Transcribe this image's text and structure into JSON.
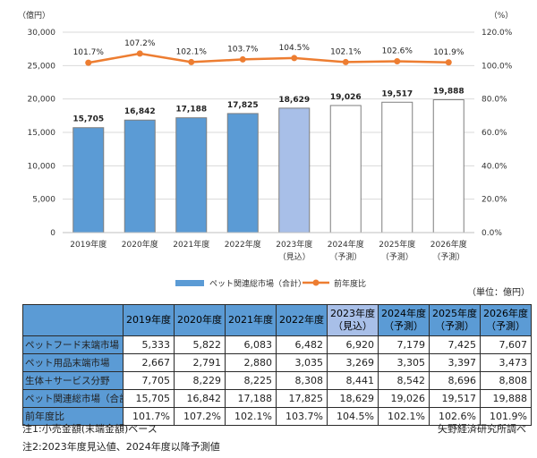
{
  "chart_data": {
    "type": "bar+line",
    "left_axis": {
      "unit": "（億円）",
      "ticks": [
        "30,000",
        "25,000",
        "20,000",
        "15,000",
        "10,000",
        "5,000",
        "0"
      ],
      "ylim": [
        0,
        30000
      ]
    },
    "right_axis": {
      "unit": "（%）",
      "ticks": [
        "120.0%",
        "100.0%",
        "80.0%",
        "60.0%",
        "40.0%",
        "20.0%",
        "0.0%"
      ],
      "ylim": [
        0,
        120
      ]
    },
    "categories": [
      [
        "2019年度"
      ],
      [
        "2020年度"
      ],
      [
        "2021年度"
      ],
      [
        "2022年度"
      ],
      [
        "2023年度",
        "（見込）"
      ],
      [
        "2024年度",
        "（予測）"
      ],
      [
        "2025年度",
        "（予測）"
      ],
      [
        "2026年度",
        "（予測）"
      ]
    ],
    "series": [
      {
        "name": "ペット関連総市場（合計）",
        "type": "bar",
        "values": [
          15705,
          16842,
          17188,
          17825,
          18629,
          19026,
          19517,
          19888
        ],
        "labels": [
          "15,705",
          "16,842",
          "17,188",
          "17,825",
          "18,629",
          "19,026",
          "19,517",
          "19,888"
        ]
      },
      {
        "name": "前年度比",
        "type": "line",
        "values": [
          101.7,
          107.2,
          102.1,
          103.7,
          104.5,
          102.1,
          102.6,
          101.9
        ],
        "labels": [
          "101.7%",
          "107.2%",
          "102.1%",
          "103.7%",
          "104.5%",
          "102.1%",
          "102.6%",
          "101.9%"
        ]
      }
    ],
    "grid": true,
    "legend_position": "bottom"
  },
  "colors": {
    "actual": "#5b9bd5",
    "estimate": "#a8bfe8",
    "forecast": "#ffffff",
    "line": "#ed7d31",
    "grid": "#d9d9d9"
  },
  "unit_note": "（単位：億円）",
  "table": {
    "headers": [
      {
        "line1": "2019年度",
        "line2": ""
      },
      {
        "line1": "2020年度",
        "line2": ""
      },
      {
        "line1": "2021年度",
        "line2": ""
      },
      {
        "line1": "2022年度",
        "line2": ""
      },
      {
        "line1": "2023年度",
        "line2": "（見込）"
      },
      {
        "line1": "2024年度",
        "line2": "（予測）"
      },
      {
        "line1": "2025年度",
        "line2": "（予測）"
      },
      {
        "line1": "2026年度",
        "line2": "（予測）"
      }
    ],
    "rows": [
      {
        "label": "ペットフード末端市場",
        "cells": [
          "5,333",
          "5,822",
          "6,083",
          "6,482",
          "6,920",
          "7,179",
          "7,425",
          "7,607"
        ]
      },
      {
        "label": "ペット用品末端市場",
        "cells": [
          "2,667",
          "2,791",
          "2,880",
          "3,035",
          "3,269",
          "3,305",
          "3,397",
          "3,473"
        ]
      },
      {
        "label": "生体＋サービス分野",
        "cells": [
          "7,705",
          "8,229",
          "8,225",
          "8,308",
          "8,441",
          "8,542",
          "8,696",
          "8,808"
        ]
      },
      {
        "label": "ペット関連総市場（合計）",
        "cells": [
          "15,705",
          "16,842",
          "17,188",
          "17,825",
          "18,629",
          "19,026",
          "19,517",
          "19,888"
        ]
      },
      {
        "label": "前年度比",
        "cells": [
          "101.7%",
          "107.2%",
          "102.1%",
          "103.7%",
          "104.5%",
          "102.1%",
          "102.6%",
          "101.9%"
        ]
      }
    ]
  },
  "notes": {
    "note1": "注1:小売金額(末端金額)ベース",
    "note2": "注2:2023年度見込値、2024年度以降予測値",
    "source": "矢野経済研究所調べ"
  }
}
